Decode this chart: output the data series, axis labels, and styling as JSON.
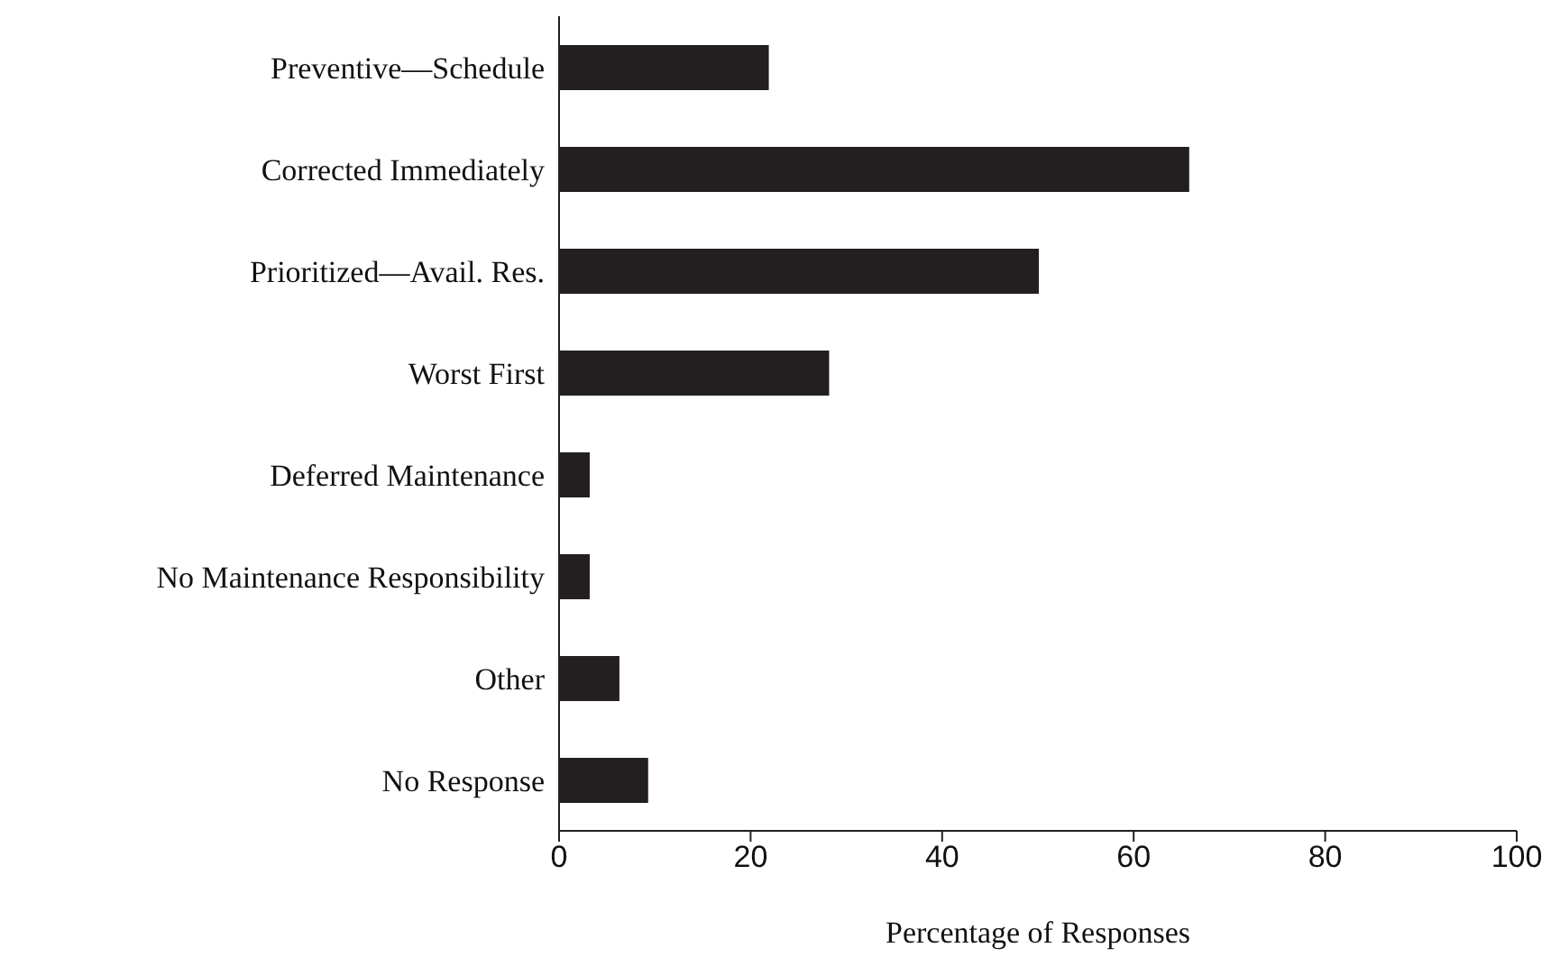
{
  "chart_data": {
    "type": "bar",
    "orientation": "horizontal",
    "xlabel": "Percentage of Responses",
    "categories": [
      "Preventive—Schedule",
      "Corrected Immediately",
      "Prioritized—Avail. Res.",
      "Worst First",
      "Deferred Maintenance",
      "No Maintenance Responsibility",
      "Other",
      "No Response"
    ],
    "values": [
      21.9,
      65.8,
      50.1,
      28.2,
      3.2,
      3.2,
      6.3,
      9.3
    ],
    "color": "#231f20",
    "xlim": [
      0,
      100
    ],
    "xticks": [
      0,
      20,
      40,
      60,
      80,
      100
    ],
    "grid": false,
    "legend": false
  }
}
